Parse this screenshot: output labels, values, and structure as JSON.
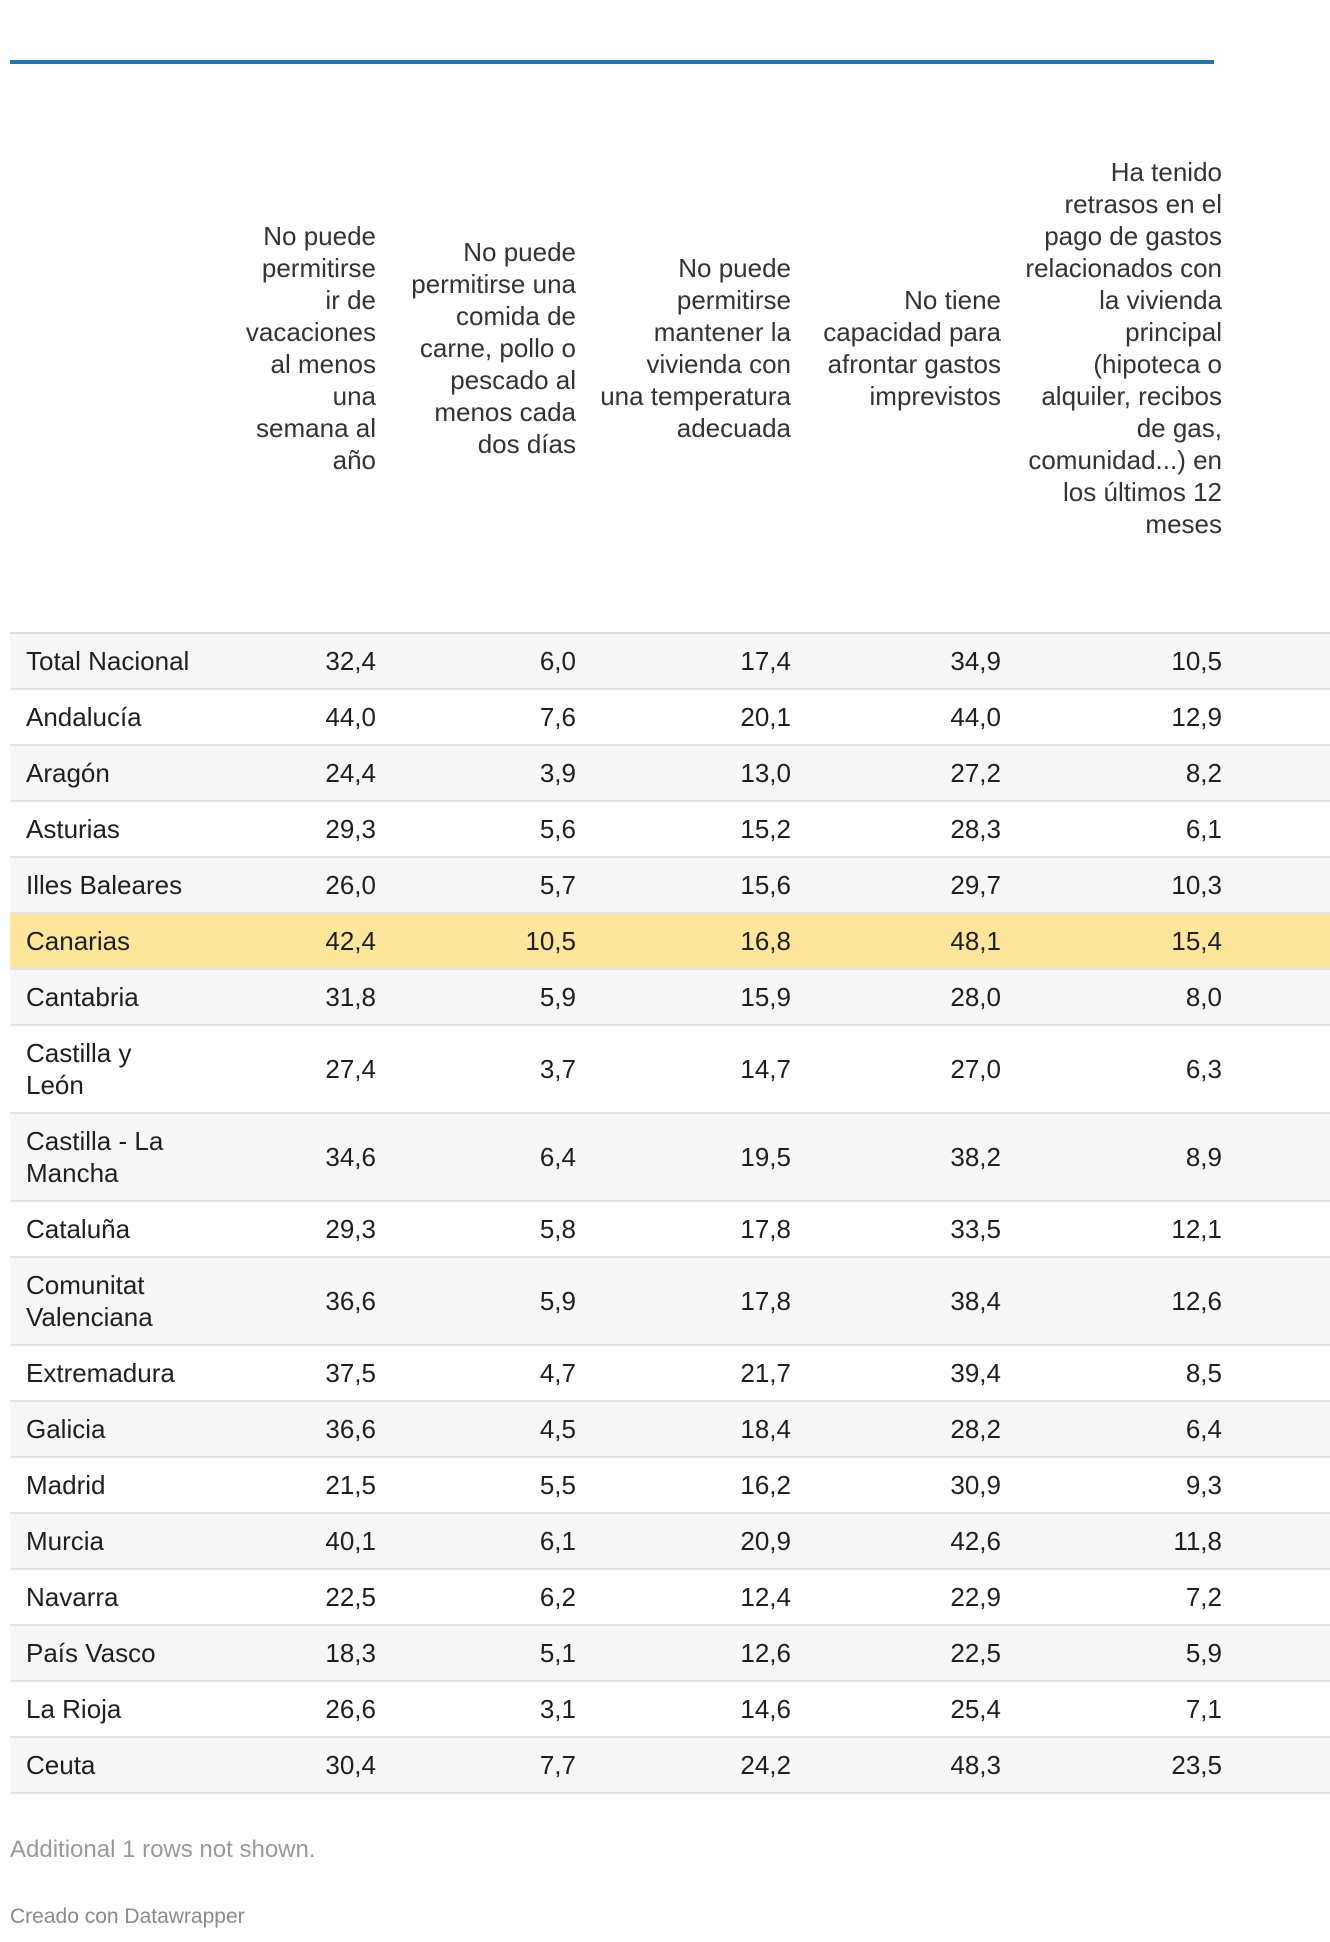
{
  "table": {
    "columns": [
      "",
      "No puede permitirse ir de vacaciones al menos una semana al año",
      "No puede permitirse una comida de carne, pollo o pescado al menos cada dos días",
      "No puede permitirse mantener la vivienda con una temperatura adecuada",
      "No tiene capacidad para afrontar gastos imprevistos",
      "Ha tenido retrasos en el pago de gastos relacionados con la vivienda principal (hipoteca o alquiler, recibos de gas, comunidad...) en los últimos 12 meses"
    ],
    "rows": [
      {
        "region": "Total Nacional",
        "v1": "32,4",
        "v2": "6,0",
        "v3": "17,4",
        "v4": "34,9",
        "v5": "10,5"
      },
      {
        "region": "Andalucía",
        "v1": "44,0",
        "v2": "7,6",
        "v3": "20,1",
        "v4": "44,0",
        "v5": "12,9"
      },
      {
        "region": "Aragón",
        "v1": "24,4",
        "v2": "3,9",
        "v3": "13,0",
        "v4": "27,2",
        "v5": "8,2"
      },
      {
        "region": "Asturias",
        "v1": "29,3",
        "v2": "5,6",
        "v3": "15,2",
        "v4": "28,3",
        "v5": "6,1"
      },
      {
        "region": "Illes Baleares",
        "v1": "26,0",
        "v2": "5,7",
        "v3": "15,6",
        "v4": "29,7",
        "v5": "10,3"
      },
      {
        "region": "Canarias",
        "v1": "42,4",
        "v2": "10,5",
        "v3": "16,8",
        "v4": "48,1",
        "v5": "15,4",
        "highlight": true
      },
      {
        "region": "Cantabria",
        "v1": "31,8",
        "v2": "5,9",
        "v3": "15,9",
        "v4": "28,0",
        "v5": "8,0"
      },
      {
        "region": "Castilla y León",
        "v1": "27,4",
        "v2": "3,7",
        "v3": "14,7",
        "v4": "27,0",
        "v5": "6,3"
      },
      {
        "region": "Castilla - La Mancha",
        "v1": "34,6",
        "v2": "6,4",
        "v3": "19,5",
        "v4": "38,2",
        "v5": "8,9"
      },
      {
        "region": "Cataluña",
        "v1": "29,3",
        "v2": "5,8",
        "v3": "17,8",
        "v4": "33,5",
        "v5": "12,1"
      },
      {
        "region": "Comunitat Valenciana",
        "v1": "36,6",
        "v2": "5,9",
        "v3": "17,8",
        "v4": "38,4",
        "v5": "12,6"
      },
      {
        "region": "Extremadura",
        "v1": "37,5",
        "v2": "4,7",
        "v3": "21,7",
        "v4": "39,4",
        "v5": "8,5"
      },
      {
        "region": "Galicia",
        "v1": "36,6",
        "v2": "4,5",
        "v3": "18,4",
        "v4": "28,2",
        "v5": "6,4"
      },
      {
        "region": "Madrid",
        "v1": "21,5",
        "v2": "5,5",
        "v3": "16,2",
        "v4": "30,9",
        "v5": "9,3"
      },
      {
        "region": "Murcia",
        "v1": "40,1",
        "v2": "6,1",
        "v3": "20,9",
        "v4": "42,6",
        "v5": "11,8"
      },
      {
        "region": "Navarra",
        "v1": "22,5",
        "v2": "6,2",
        "v3": "12,4",
        "v4": "22,9",
        "v5": "7,2"
      },
      {
        "region": "País Vasco",
        "v1": "18,3",
        "v2": "5,1",
        "v3": "12,6",
        "v4": "22,5",
        "v5": "5,9"
      },
      {
        "region": "La Rioja",
        "v1": "26,6",
        "v2": "3,1",
        "v3": "14,6",
        "v4": "25,4",
        "v5": "7,1"
      },
      {
        "region": "Ceuta",
        "v1": "30,4",
        "v2": "7,7",
        "v3": "24,2",
        "v4": "48,3",
        "v5": "23,5"
      }
    ]
  },
  "footer": {
    "note": "Additional 1 rows not shown.",
    "credit": "Creado con Datawrapper"
  },
  "colors": {
    "accent_rule": "#1e78a6",
    "highlight_row": "#fde59c",
    "zebra_row": "#f7f7f7"
  }
}
